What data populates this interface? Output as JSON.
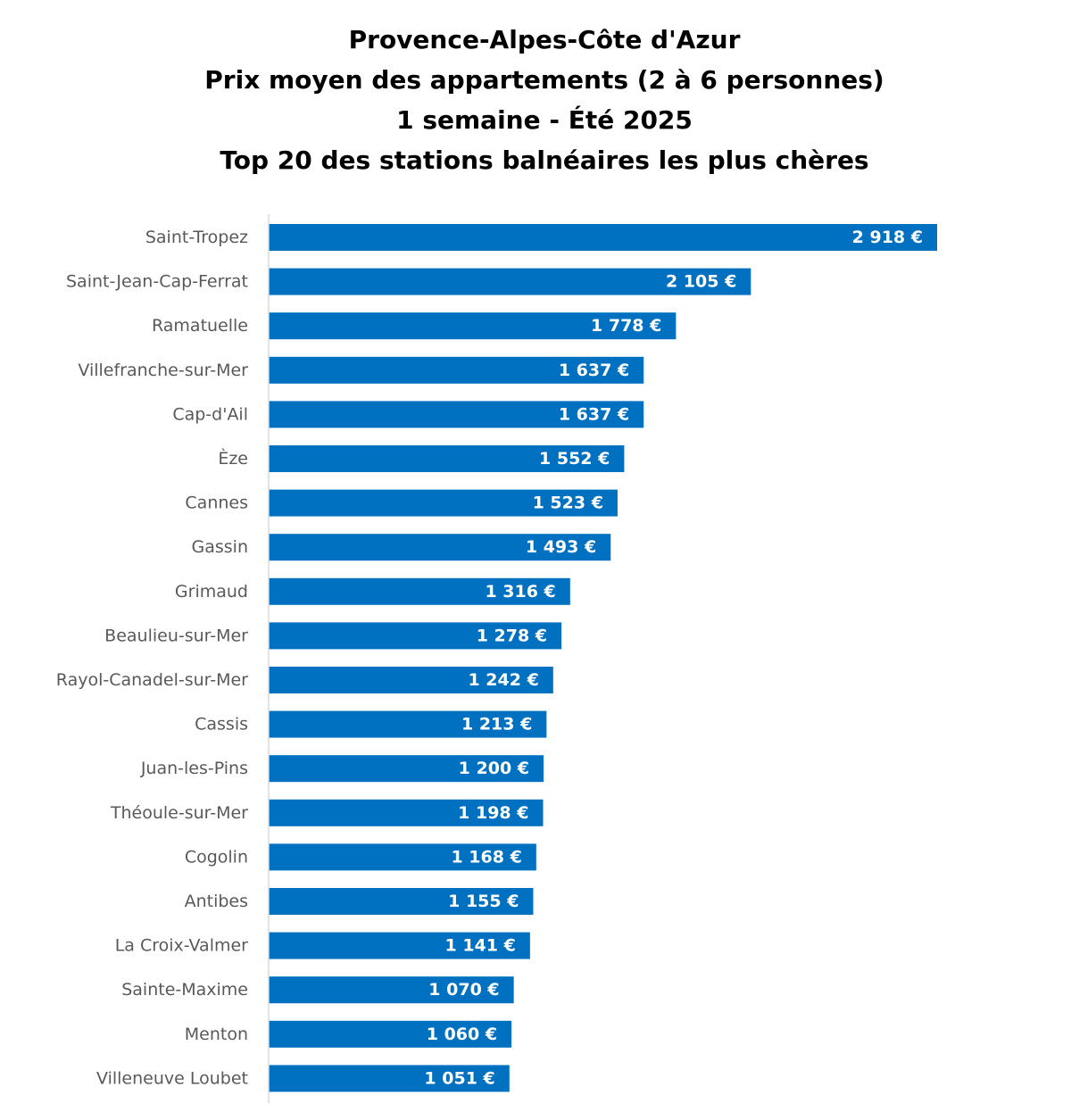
{
  "chart_data": {
    "type": "bar",
    "orientation": "horizontal",
    "title": [
      "Provence-Alpes-Côte d'Azur",
      "Prix moyen des appartements (2 à 6 personnes)",
      "1 semaine - Été 2025",
      "Top 20 des stations balnéaires les plus chères"
    ],
    "xlabel": "",
    "ylabel": "",
    "categories": [
      "Saint-Tropez",
      "Saint-Jean-Cap-Ferrat",
      "Ramatuelle",
      "Villefranche-sur-Mer",
      "Cap-d'Ail",
      "Èze",
      "Cannes",
      "Gassin",
      "Grimaud",
      "Beaulieu-sur-Mer",
      "Rayol-Canadel-sur-Mer",
      "Cassis",
      "Juan-les-Pins",
      "Théoule-sur-Mer",
      "Cogolin",
      "Antibes",
      "La Croix-Valmer",
      "Sainte-Maxime",
      "Menton",
      "Villeneuve Loubet"
    ],
    "values": [
      2918,
      2105,
      1778,
      1637,
      1637,
      1552,
      1523,
      1493,
      1316,
      1278,
      1242,
      1213,
      1200,
      1198,
      1168,
      1155,
      1141,
      1070,
      1060,
      1051
    ],
    "value_labels": [
      "2 918 €",
      "2 105 €",
      "1 778 €",
      "1 637 €",
      "1 637 €",
      "1 552 €",
      "1 523 €",
      "1 493 €",
      "1 316 €",
      "1 278 €",
      "1 242 €",
      "1 213 €",
      "1 200 €",
      "1 198 €",
      "1 168 €",
      "1 155 €",
      "1 141 €",
      "1 070 €",
      "1 060 €",
      "1 051 €"
    ],
    "xlim": [
      0,
      3000
    ],
    "grid": false,
    "legend": "none",
    "colors": {
      "bar": "#0070C0",
      "axis_line": "#D9D9D9",
      "category_text": "#595959",
      "value_text": "#FFFFFF",
      "title_text": "#000000"
    }
  }
}
